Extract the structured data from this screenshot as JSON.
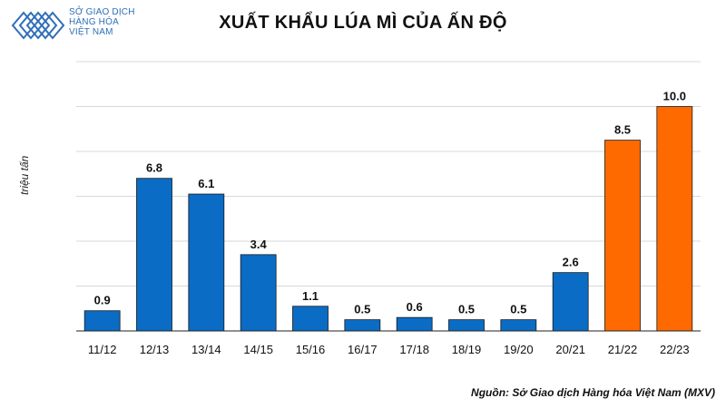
{
  "logo": {
    "line1": "SỞ GIAO DỊCH",
    "line2": "HÀNG HÓA",
    "line3": "VIỆT NAM",
    "color": "#2e6fb7"
  },
  "source_text": "Nguồn: Sở Giao dịch Hàng hóa Việt Nam (MXV)",
  "chart_data": {
    "type": "bar",
    "title": "XUẤT KHẨU LÚA MÌ CỦA ẤN ĐỘ",
    "xlabel": "",
    "ylabel": "triệu tấn",
    "ylim": [
      0,
      12
    ],
    "grid": true,
    "categories": [
      "11/12",
      "12/13",
      "13/14",
      "14/15",
      "15/16",
      "16/17",
      "17/18",
      "18/19",
      "19/20",
      "20/21",
      "21/22",
      "22/23"
    ],
    "values": [
      0.9,
      6.8,
      6.1,
      3.4,
      1.1,
      0.5,
      0.6,
      0.5,
      0.5,
      2.6,
      8.5,
      10.0
    ],
    "value_labels": [
      "0.9",
      "6.8",
      "6.1",
      "3.4",
      "1.1",
      "0.5",
      "0.6",
      "0.5",
      "0.5",
      "2.6",
      "8.5",
      "10.0"
    ],
    "colors": {
      "default": "#0a6cc4",
      "highlight": "#ff6a00",
      "highlight_categories": [
        "21/22",
        "22/23"
      ]
    }
  }
}
